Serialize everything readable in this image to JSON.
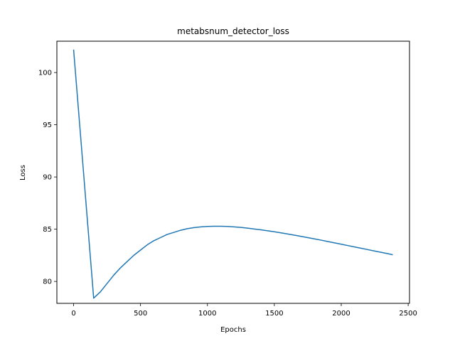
{
  "chart_data": {
    "type": "line",
    "title": "metabsnum_detector_loss",
    "xlabel": "Epochs",
    "ylabel": "Loss",
    "xlim": [
      -125,
      2510
    ],
    "ylim": [
      77.9,
      103.0
    ],
    "x_ticks": [
      0,
      500,
      1000,
      1500,
      2000,
      2500
    ],
    "y_ticks": [
      80,
      85,
      90,
      95,
      100
    ],
    "grid": false,
    "line_color": "#1f77b4",
    "series": [
      {
        "x": [
          0,
          150,
          200,
          250,
          300,
          350,
          400,
          450,
          500,
          550,
          600,
          650,
          700,
          750,
          800,
          850,
          900,
          950,
          1000,
          1050,
          1100,
          1150,
          1200,
          1250,
          1300,
          1350,
          1400,
          1450,
          1500,
          1550,
          1600,
          1650,
          1700,
          1750,
          1800,
          1850,
          1900,
          1950,
          2000,
          2050,
          2100,
          2150,
          2200,
          2250,
          2300,
          2350,
          2385
        ],
        "y": [
          102.2,
          78.4,
          79.0,
          79.8,
          80.6,
          81.3,
          81.9,
          82.5,
          83.0,
          83.5,
          83.9,
          84.2,
          84.5,
          84.7,
          84.9,
          85.05,
          85.15,
          85.22,
          85.26,
          85.28,
          85.28,
          85.26,
          85.22,
          85.17,
          85.1,
          85.02,
          84.94,
          84.85,
          84.75,
          84.65,
          84.54,
          84.43,
          84.31,
          84.19,
          84.07,
          83.95,
          83.82,
          83.69,
          83.56,
          83.43,
          83.3,
          83.17,
          83.04,
          82.91,
          82.78,
          82.65,
          82.55
        ]
      }
    ]
  }
}
